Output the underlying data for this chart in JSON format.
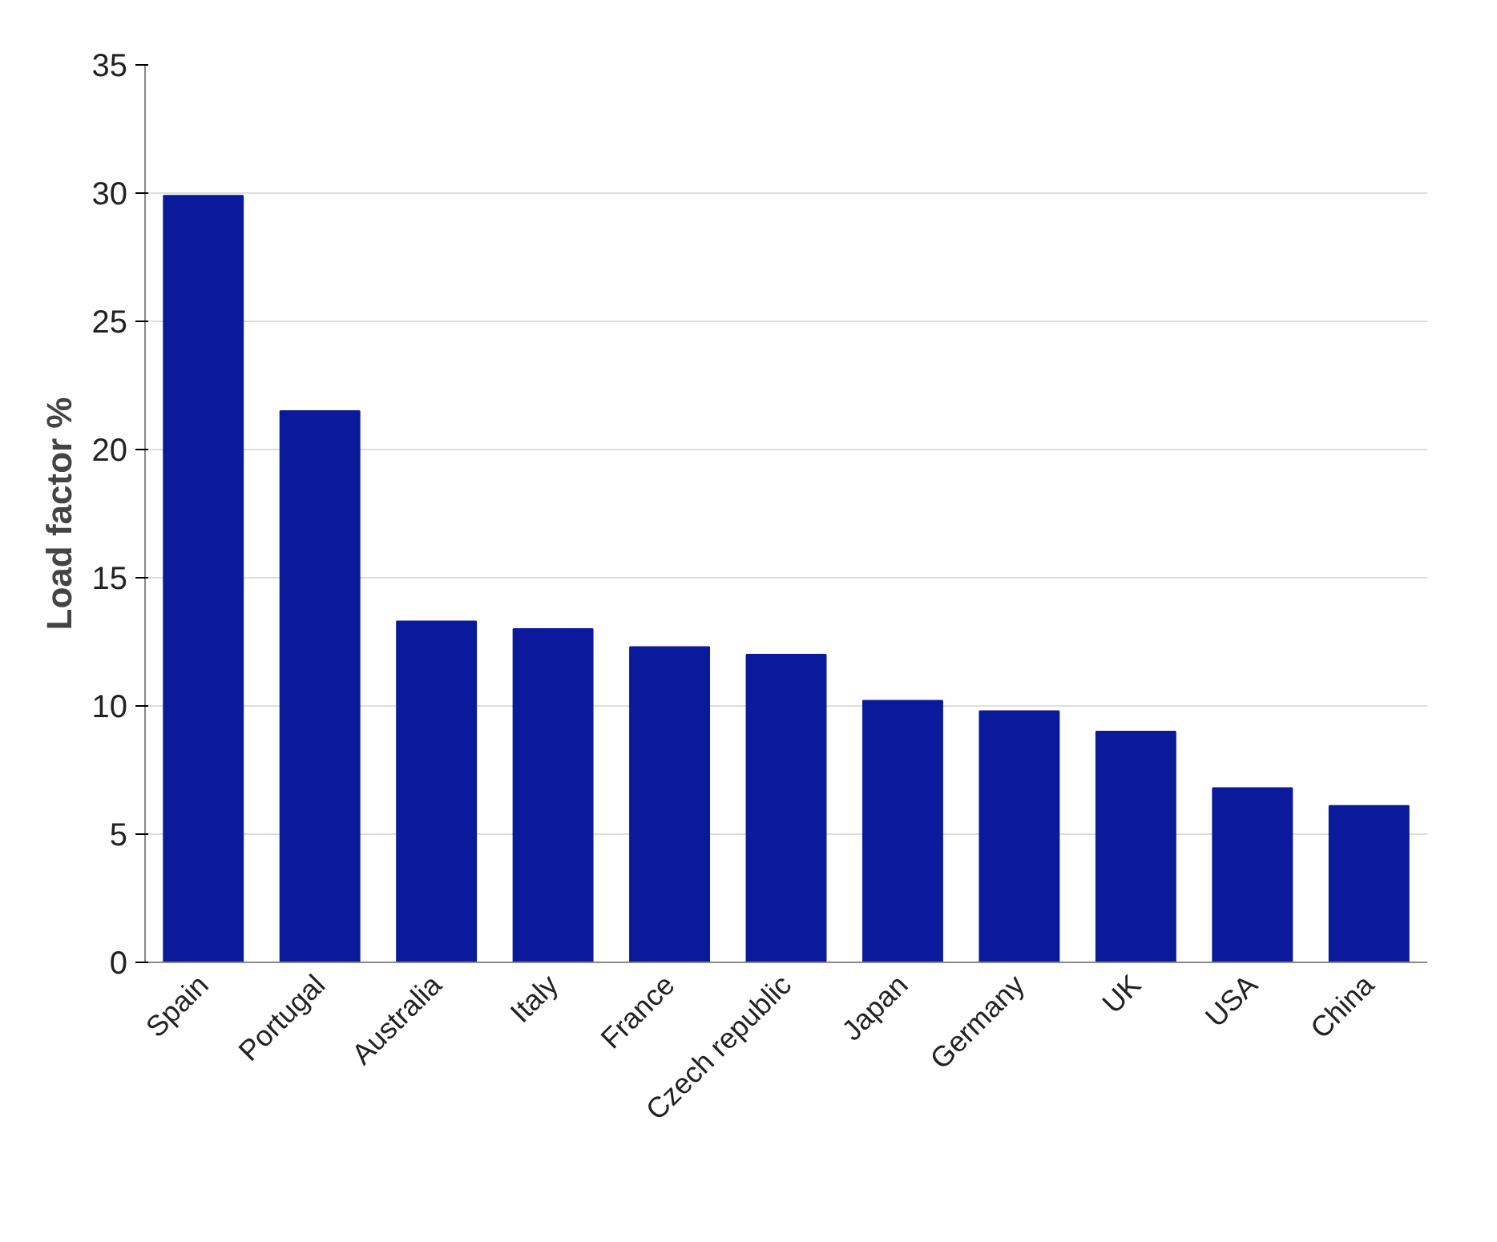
{
  "chart_data": {
    "type": "bar",
    "ylabel": "Load factor %",
    "categories": [
      "Spain",
      "Portugal",
      "Australia",
      "Italy",
      "France",
      "Czech republic",
      "Japan",
      "Germany",
      "UK",
      "USA",
      "China"
    ],
    "values": [
      29.9,
      21.5,
      13.3,
      13.0,
      12.3,
      12.0,
      10.2,
      9.8,
      9.0,
      6.8,
      6.1
    ],
    "color": "#0a1a9a",
    "ylim": [
      0,
      35
    ],
    "yticks": [
      0,
      5,
      10,
      15,
      20,
      25,
      30,
      35
    ],
    "grid": "y"
  }
}
